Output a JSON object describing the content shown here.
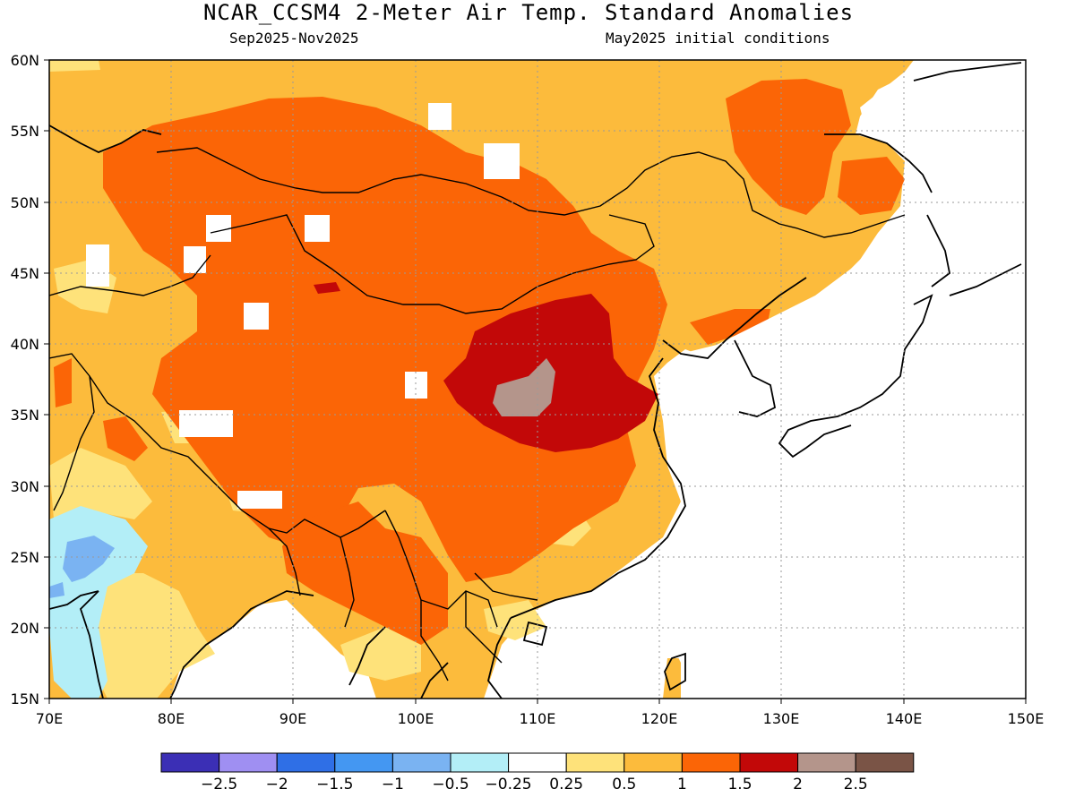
{
  "header": {
    "title": "NCAR_CCSM4 2-Meter Air Temp. Standard Anomalies",
    "period": "Sep2025-Nov2025",
    "init": "May2025 initial conditions"
  },
  "map": {
    "lon_range": [
      70,
      150
    ],
    "lat_range": [
      15,
      60
    ],
    "lon_ticks": [
      "70E",
      "80E",
      "90E",
      "100E",
      "110E",
      "120E",
      "130E",
      "140E",
      "150E"
    ],
    "lat_ticks": [
      "60N",
      "55N",
      "50N",
      "45N",
      "40N",
      "35N",
      "30N",
      "25N",
      "20N",
      "15N"
    ],
    "gridlines": "dotted",
    "ocean_masked": "white",
    "max_anomaly_region": "central China (~105-112E, 35-39N) above 2.0",
    "min_anomaly_region": "NW India / Pakistan (~72-77E, 22-26N) between -1.0 and -0.5"
  },
  "colorbar": {
    "labels": [
      "-2.5",
      "-2",
      "-1.5",
      "-1",
      "-0.5",
      "-0.25",
      "0.25",
      "0.5",
      "1",
      "1.5",
      "2",
      "2.5"
    ],
    "colors": [
      "#3b2fb5",
      "#9f8ff2",
      "#2f6fe6",
      "#4497f2",
      "#7ab3f2",
      "#b3eef7",
      "#ffffff",
      "#fee27a",
      "#fcbb3c",
      "#fb6506",
      "#c20808",
      "#b4958b",
      "#7a5446"
    ]
  },
  "chart_data": {
    "type": "heatmap",
    "title": "NCAR_CCSM4 2-Meter Air Temp. Standard Anomalies",
    "subtitle": "Sep2025-Nov2025 / May2025 initial conditions",
    "x_range": [
      70,
      150
    ],
    "y_range": [
      15,
      60
    ],
    "bins": [
      -2.5,
      -2,
      -1.5,
      -1,
      -0.5,
      -0.25,
      0.25,
      0.5,
      1,
      1.5,
      2,
      2.5
    ]
  }
}
